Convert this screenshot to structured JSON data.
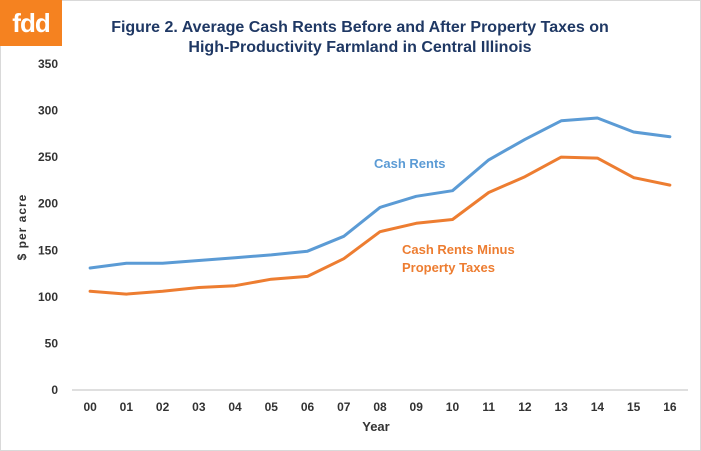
{
  "logo": {
    "text": "fdd",
    "color": "#f58220"
  },
  "chart_data": {
    "type": "line",
    "title_line1": "Figure 2.  Average Cash Rents Before and After Property Taxes on",
    "title_line2": "High-Productivity Farmland in Central Illinois",
    "xlabel": "Year",
    "ylabel": "$ per acre",
    "ylim": [
      0,
      350
    ],
    "yticks": [
      0,
      50,
      100,
      150,
      200,
      250,
      300,
      350
    ],
    "categories": [
      "00",
      "01",
      "02",
      "03",
      "04",
      "05",
      "06",
      "07",
      "08",
      "09",
      "10",
      "11",
      "12",
      "13",
      "14",
      "15",
      "16"
    ],
    "grid": false,
    "series": [
      {
        "name": "Cash Rents",
        "color": "#5b9bd5",
        "values": [
          131,
          136,
          136,
          139,
          142,
          145,
          149,
          165,
          196,
          208,
          214,
          247,
          269,
          289,
          292,
          277,
          272
        ]
      },
      {
        "name": "Cash Rents Minus Property Taxes",
        "label_line1": "Cash Rents Minus",
        "label_line2": "Property Taxes",
        "color": "#ed7d31",
        "values": [
          106,
          103,
          106,
          110,
          112,
          119,
          122,
          141,
          170,
          179,
          183,
          212,
          229,
          250,
          249,
          228,
          220
        ]
      }
    ]
  }
}
